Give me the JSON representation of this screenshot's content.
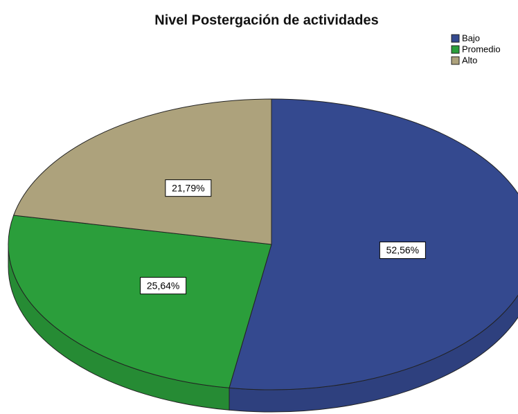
{
  "chart_data": {
    "type": "pie",
    "title": "Nivel Postergación de actividades",
    "categories": [
      "Bajo",
      "Promedio",
      "Alto"
    ],
    "values": [
      52.56,
      25.64,
      21.79
    ],
    "value_labels": [
      "52,56%",
      "25,64%",
      "21,79%"
    ],
    "colors": [
      "#34498f",
      "#2b9e3b",
      "#ada27c"
    ]
  }
}
